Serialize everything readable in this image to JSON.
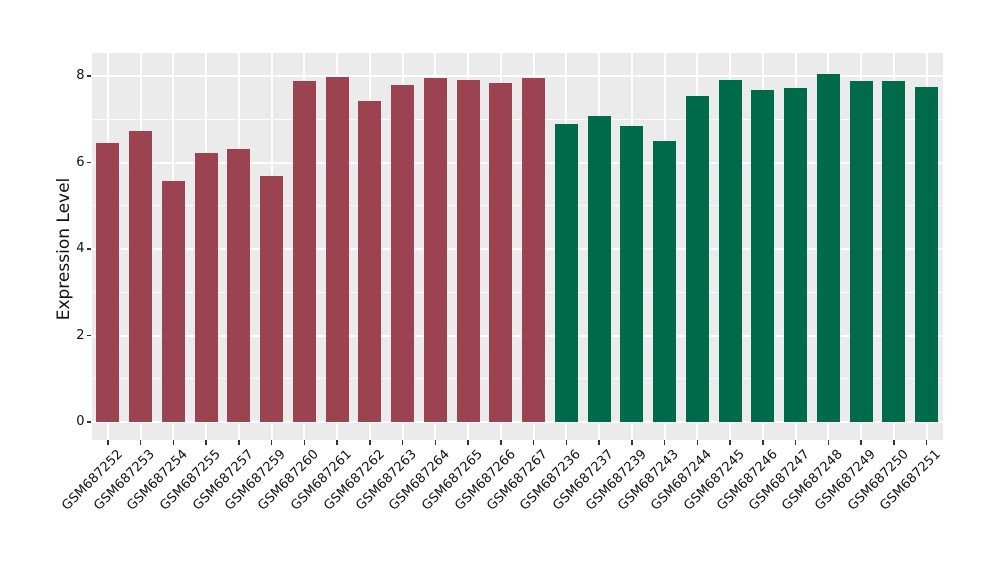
{
  "chart_data": {
    "type": "bar",
    "title": "",
    "xlabel": "",
    "ylabel": "Expression Level",
    "yticks": [
      0,
      2,
      4,
      6,
      8
    ],
    "yminorticks": [
      1,
      3,
      5,
      7
    ],
    "ylim": [
      -0.4,
      8.5
    ],
    "grid": "on",
    "legend": "none",
    "panel_background": "#EBEBEB",
    "grid_color": "#FFFFFF",
    "text_color": "#111111",
    "tick_color": "#333333",
    "group_colors": {
      "maroon": "#9B4350",
      "green": "#006B4A"
    },
    "bars": [
      {
        "label": "GSM687252",
        "value": 6.44,
        "group": "maroon"
      },
      {
        "label": "GSM687253",
        "value": 6.72,
        "group": "maroon"
      },
      {
        "label": "GSM687254",
        "value": 5.57,
        "group": "maroon"
      },
      {
        "label": "GSM687255",
        "value": 6.22,
        "group": "maroon"
      },
      {
        "label": "GSM687257",
        "value": 6.31,
        "group": "maroon"
      },
      {
        "label": "GSM687259",
        "value": 5.69,
        "group": "maroon"
      },
      {
        "label": "GSM687260",
        "value": 7.88,
        "group": "maroon"
      },
      {
        "label": "GSM687261",
        "value": 7.97,
        "group": "maroon"
      },
      {
        "label": "GSM687262",
        "value": 7.43,
        "group": "maroon"
      },
      {
        "label": "GSM687263",
        "value": 7.8,
        "group": "maroon"
      },
      {
        "label": "GSM687264",
        "value": 7.96,
        "group": "maroon"
      },
      {
        "label": "GSM687265",
        "value": 7.9,
        "group": "maroon"
      },
      {
        "label": "GSM687266",
        "value": 7.84,
        "group": "maroon"
      },
      {
        "label": "GSM687267",
        "value": 7.95,
        "group": "maroon"
      },
      {
        "label": "GSM687236",
        "value": 6.88,
        "group": "green"
      },
      {
        "label": "GSM687237",
        "value": 7.07,
        "group": "green"
      },
      {
        "label": "GSM687239",
        "value": 6.84,
        "group": "green"
      },
      {
        "label": "GSM687243",
        "value": 6.5,
        "group": "green"
      },
      {
        "label": "GSM687244",
        "value": 7.53,
        "group": "green"
      },
      {
        "label": "GSM687245",
        "value": 7.9,
        "group": "green"
      },
      {
        "label": "GSM687246",
        "value": 7.67,
        "group": "green"
      },
      {
        "label": "GSM687247",
        "value": 7.73,
        "group": "green"
      },
      {
        "label": "GSM687248",
        "value": 8.04,
        "group": "green"
      },
      {
        "label": "GSM687249",
        "value": 7.89,
        "group": "green"
      },
      {
        "label": "GSM687250",
        "value": 7.89,
        "group": "green"
      },
      {
        "label": "GSM687251",
        "value": 7.74,
        "group": "green"
      }
    ]
  }
}
